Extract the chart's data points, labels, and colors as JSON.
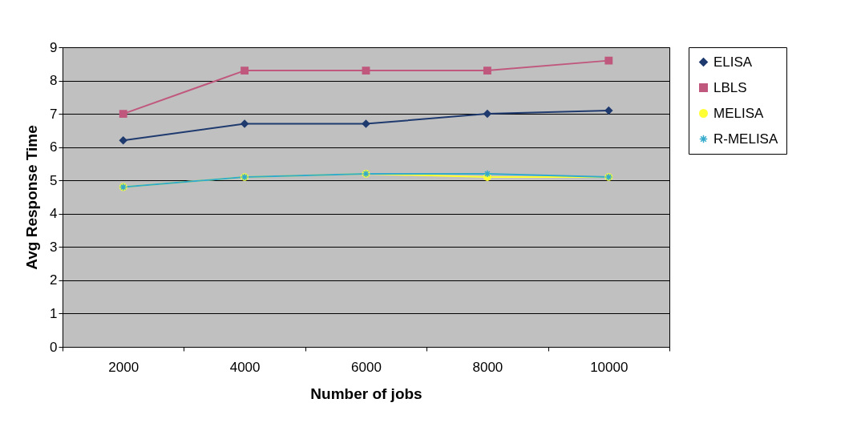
{
  "chart_data": {
    "type": "line",
    "xlabel": "Number of jobs",
    "ylabel": "Avg Response Time",
    "categories": [
      "2000",
      "4000",
      "6000",
      "8000",
      "10000"
    ],
    "series": [
      {
        "name": "ELISA",
        "color": "#1f3a6e",
        "marker": "diamond",
        "values": [
          6.2,
          6.7,
          6.7,
          7.0,
          7.1
        ]
      },
      {
        "name": "LBLS",
        "color": "#c0587e",
        "marker": "square",
        "values": [
          7.0,
          8.3,
          8.3,
          8.3,
          8.6
        ]
      },
      {
        "name": "MELISA",
        "color": "#ffff33",
        "marker": "circle",
        "values": [
          4.8,
          5.1,
          5.2,
          5.1,
          5.1
        ]
      },
      {
        "name": "R-MELISA",
        "color": "#33aacc",
        "marker": "cross",
        "values": [
          4.8,
          5.1,
          5.2,
          5.2,
          5.1
        ]
      }
    ],
    "ylim": [
      0,
      9
    ],
    "yticks": [
      0,
      1,
      2,
      3,
      4,
      5,
      6,
      7,
      8,
      9
    ],
    "grid": "y",
    "legend": "right",
    "line_style": "solid"
  }
}
